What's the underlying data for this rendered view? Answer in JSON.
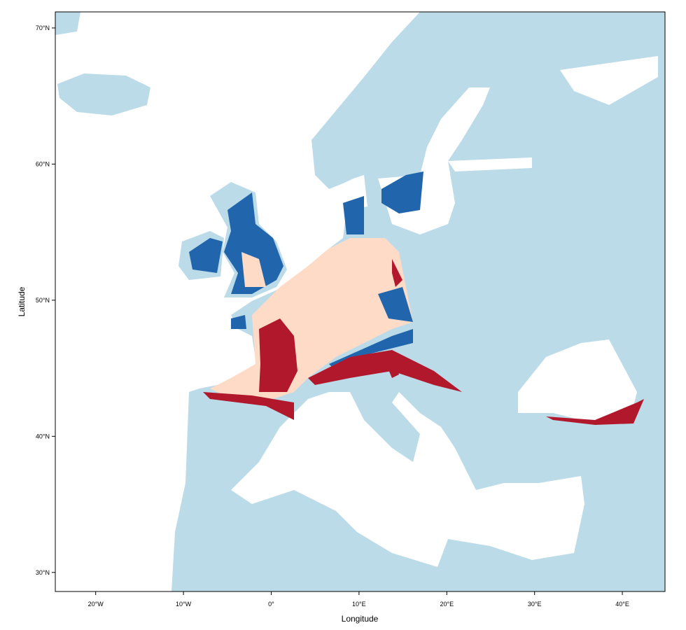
{
  "chart_data": {
    "type": "map",
    "x_label": "Longitude",
    "y_label": "Latitude",
    "xlim": [
      -24.6,
      44.86
    ],
    "ylim": [
      28.6,
      71.18
    ],
    "xticks": [
      {
        "value": -20,
        "label": "20°W"
      },
      {
        "value": -10,
        "label": "10°W"
      },
      {
        "value": 0,
        "label": "0°"
      },
      {
        "value": 10,
        "label": "10°E"
      },
      {
        "value": 20,
        "label": "20°E"
      },
      {
        "value": 30,
        "label": "30°E"
      },
      {
        "value": 40,
        "label": "40°E"
      }
    ],
    "yticks": [
      {
        "value": 30,
        "label": "30°N"
      },
      {
        "value": 40,
        "label": "40°N"
      },
      {
        "value": 50,
        "label": "50°N"
      },
      {
        "value": 60,
        "label": "60°N"
      },
      {
        "value": 70,
        "label": "70°N"
      }
    ]
  }
}
